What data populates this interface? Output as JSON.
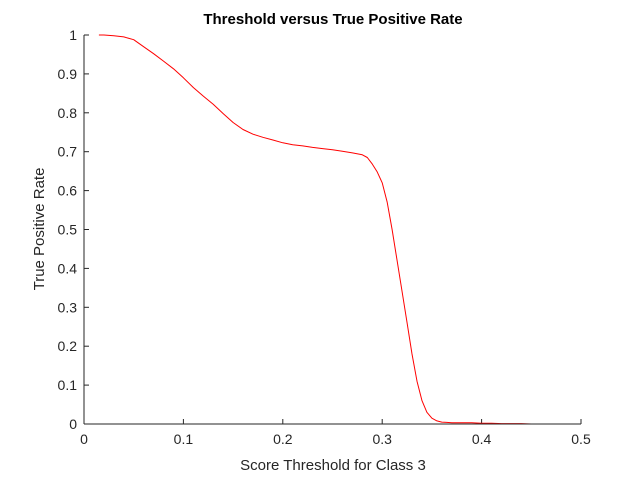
{
  "chart_data": {
    "type": "line",
    "title": "Threshold versus True Positive Rate",
    "xlabel": "Score Threshold for Class 3",
    "ylabel": "True Positive Rate",
    "xlim": [
      0,
      0.5
    ],
    "ylim": [
      0,
      1
    ],
    "xticks": [
      0,
      0.1,
      0.2,
      0.3,
      0.4,
      0.5
    ],
    "xtick_labels": [
      "0",
      "0.1",
      "0.2",
      "0.3",
      "0.4",
      "0.5"
    ],
    "yticks": [
      0,
      0.1,
      0.2,
      0.3,
      0.4,
      0.5,
      0.6,
      0.7,
      0.8,
      0.9,
      1
    ],
    "ytick_labels": [
      "0",
      "0.1",
      "0.2",
      "0.3",
      "0.4",
      "0.5",
      "0.6",
      "0.7",
      "0.8",
      "0.9",
      "1"
    ],
    "grid": false,
    "legend": null,
    "series": [
      {
        "color": "#ff0000",
        "x": [
          0.015,
          0.02,
          0.03,
          0.04,
          0.05,
          0.06,
          0.07,
          0.08,
          0.09,
          0.1,
          0.11,
          0.12,
          0.13,
          0.14,
          0.15,
          0.16,
          0.17,
          0.18,
          0.19,
          0.2,
          0.21,
          0.22,
          0.23,
          0.24,
          0.25,
          0.26,
          0.27,
          0.28,
          0.285,
          0.29,
          0.295,
          0.3,
          0.305,
          0.31,
          0.315,
          0.32,
          0.325,
          0.33,
          0.335,
          0.34,
          0.345,
          0.35,
          0.355,
          0.36,
          0.365,
          0.37,
          0.38,
          0.39,
          0.4,
          0.41,
          0.42,
          0.43,
          0.44,
          0.45,
          0.46,
          0.47,
          0.48,
          0.49
        ],
        "y": [
          1.0,
          1.0,
          0.998,
          0.995,
          0.988,
          0.97,
          0.952,
          0.933,
          0.913,
          0.89,
          0.865,
          0.843,
          0.822,
          0.798,
          0.775,
          0.757,
          0.745,
          0.737,
          0.73,
          0.723,
          0.718,
          0.715,
          0.711,
          0.708,
          0.705,
          0.701,
          0.697,
          0.692,
          0.685,
          0.668,
          0.648,
          0.62,
          0.57,
          0.5,
          0.42,
          0.34,
          0.26,
          0.18,
          0.11,
          0.06,
          0.03,
          0.015,
          0.008,
          0.005,
          0.004,
          0.003,
          0.003,
          0.003,
          0.002,
          0.002,
          0.001,
          0.001,
          0.001,
          0.0,
          0.0,
          0.0,
          0.0,
          0.0
        ]
      }
    ]
  }
}
